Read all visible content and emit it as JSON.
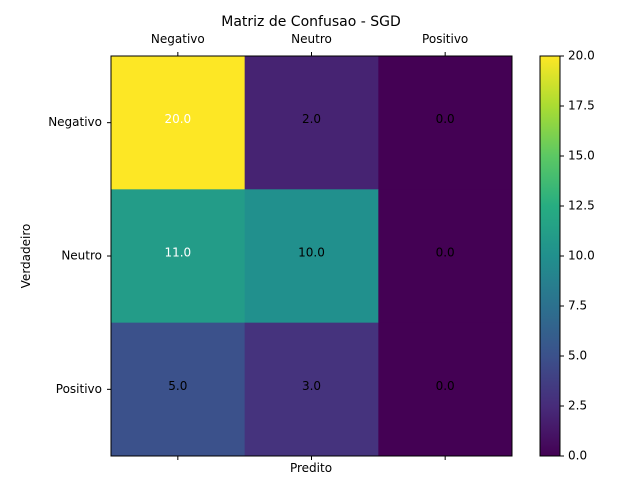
{
  "chart_data": {
    "type": "heatmap",
    "title": "Matriz de Confusao - SGD",
    "xlabel": "Predito",
    "ylabel": "Verdadeiro",
    "x_categories": [
      "Negativo",
      "Neutro",
      "Positivo"
    ],
    "y_categories": [
      "Negativo",
      "Neutro",
      "Positivo"
    ],
    "values": [
      [
        20.0,
        2.0,
        0.0
      ],
      [
        11.0,
        10.0,
        0.0
      ],
      [
        5.0,
        3.0,
        0.0
      ]
    ],
    "cell_labels": [
      [
        "20.0",
        "2.0",
        "0.0"
      ],
      [
        "11.0",
        "10.0",
        "0.0"
      ],
      [
        "5.0",
        "3.0",
        "0.0"
      ]
    ],
    "colormap": "viridis",
    "vmin": 0,
    "vmax": 20,
    "colorbar_ticks": [
      "0.0",
      "2.5",
      "5.0",
      "7.5",
      "10.0",
      "12.5",
      "15.0",
      "17.5",
      "20.0"
    ],
    "x_tick_position": "top",
    "grid": false
  }
}
